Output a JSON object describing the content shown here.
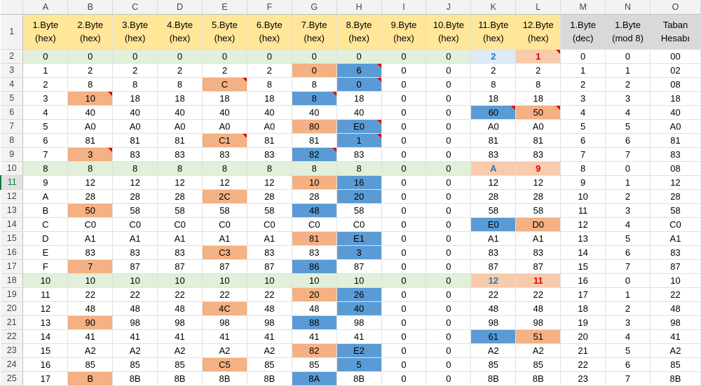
{
  "columns": [
    "A",
    "B",
    "C",
    "D",
    "E",
    "F",
    "G",
    "H",
    "I",
    "J",
    "K",
    "L",
    "M",
    "N",
    "O"
  ],
  "header_row": {
    "row_number": "1",
    "labels": [
      "1.Byte\n(hex)",
      "2.Byte\n(hex)",
      "3.Byte\n(hex)",
      "4.Byte\n(hex)",
      "5.Byte\n(hex)",
      "6.Byte\n(hex)",
      "7.Byte\n(hex)",
      "8.Byte\n(hex)",
      "9.Byte\n(hex)",
      "10.Byte\n(hex)",
      "11.Byte\n(hex)",
      "12.Byte\n(hex)",
      "1.Byte\n(dec)",
      "1.Byte\n(mod 8)",
      "Taban\nHesabı"
    ]
  },
  "rows": [
    {
      "num": "2",
      "cells": [
        "0",
        "0",
        "0",
        "0",
        "0",
        "0",
        "0",
        "0",
        "0",
        "0",
        "2",
        "1",
        "0",
        "0",
        "00"
      ]
    },
    {
      "num": "3",
      "cells": [
        "1",
        "2",
        "2",
        "2",
        "2",
        "2",
        "0",
        "6",
        "0",
        "0",
        "2",
        "2",
        "1",
        "1",
        "02"
      ]
    },
    {
      "num": "4",
      "cells": [
        "2",
        "8",
        "8",
        "8",
        "C",
        "8",
        "8",
        "0",
        "0",
        "0",
        "8",
        "8",
        "2",
        "2",
        "08"
      ]
    },
    {
      "num": "5",
      "cells": [
        "3",
        "10",
        "18",
        "18",
        "18",
        "18",
        "8",
        "18",
        "0",
        "0",
        "18",
        "18",
        "3",
        "3",
        "18"
      ]
    },
    {
      "num": "6",
      "cells": [
        "4",
        "40",
        "40",
        "40",
        "40",
        "40",
        "40",
        "40",
        "0",
        "0",
        "60",
        "50",
        "4",
        "4",
        "40"
      ]
    },
    {
      "num": "7",
      "cells": [
        "5",
        "A0",
        "A0",
        "A0",
        "A0",
        "A0",
        "80",
        "E0",
        "0",
        "0",
        "A0",
        "A0",
        "5",
        "5",
        "A0"
      ]
    },
    {
      "num": "8",
      "cells": [
        "6",
        "81",
        "81",
        "81",
        "C1",
        "81",
        "81",
        "1",
        "0",
        "0",
        "81",
        "81",
        "6",
        "6",
        "81"
      ]
    },
    {
      "num": "9",
      "cells": [
        "7",
        "3",
        "83",
        "83",
        "83",
        "83",
        "82",
        "83",
        "0",
        "0",
        "83",
        "83",
        "7",
        "7",
        "83"
      ]
    },
    {
      "num": "10",
      "cells": [
        "8",
        "8",
        "8",
        "8",
        "8",
        "8",
        "8",
        "8",
        "0",
        "0",
        "A",
        "9",
        "8",
        "0",
        "08"
      ]
    },
    {
      "num": "11",
      "cells": [
        "9",
        "12",
        "12",
        "12",
        "12",
        "12",
        "10",
        "16",
        "0",
        "0",
        "12",
        "12",
        "9",
        "1",
        "12"
      ]
    },
    {
      "num": "12",
      "cells": [
        "A",
        "28",
        "28",
        "28",
        "2C",
        "28",
        "28",
        "20",
        "0",
        "0",
        "28",
        "28",
        "10",
        "2",
        "28"
      ]
    },
    {
      "num": "13",
      "cells": [
        "B",
        "50",
        "58",
        "58",
        "58",
        "58",
        "48",
        "58",
        "0",
        "0",
        "58",
        "58",
        "11",
        "3",
        "58"
      ]
    },
    {
      "num": "14",
      "cells": [
        "C",
        "C0",
        "C0",
        "C0",
        "C0",
        "C0",
        "C0",
        "C0",
        "0",
        "0",
        "E0",
        "D0",
        "12",
        "4",
        "C0"
      ]
    },
    {
      "num": "15",
      "cells": [
        "D",
        "A1",
        "A1",
        "A1",
        "A1",
        "A1",
        "81",
        "E1",
        "0",
        "0",
        "A1",
        "A1",
        "13",
        "5",
        "A1"
      ]
    },
    {
      "num": "16",
      "cells": [
        "E",
        "83",
        "83",
        "83",
        "C3",
        "83",
        "83",
        "3",
        "0",
        "0",
        "83",
        "83",
        "14",
        "6",
        "83"
      ]
    },
    {
      "num": "17",
      "cells": [
        "F",
        "7",
        "87",
        "87",
        "87",
        "87",
        "86",
        "87",
        "0",
        "0",
        "87",
        "87",
        "15",
        "7",
        "87"
      ]
    },
    {
      "num": "18",
      "cells": [
        "10",
        "10",
        "10",
        "10",
        "10",
        "10",
        "10",
        "10",
        "0",
        "0",
        "12",
        "11",
        "16",
        "0",
        "10"
      ]
    },
    {
      "num": "19",
      "cells": [
        "11",
        "22",
        "22",
        "22",
        "22",
        "22",
        "20",
        "26",
        "0",
        "0",
        "22",
        "22",
        "17",
        "1",
        "22"
      ]
    },
    {
      "num": "20",
      "cells": [
        "12",
        "48",
        "48",
        "48",
        "4C",
        "48",
        "48",
        "40",
        "0",
        "0",
        "48",
        "48",
        "18",
        "2",
        "48"
      ]
    },
    {
      "num": "21",
      "cells": [
        "13",
        "90",
        "98",
        "98",
        "98",
        "98",
        "88",
        "98",
        "0",
        "0",
        "98",
        "98",
        "19",
        "3",
        "98"
      ]
    },
    {
      "num": "22",
      "cells": [
        "14",
        "41",
        "41",
        "41",
        "41",
        "41",
        "41",
        "41",
        "0",
        "0",
        "61",
        "51",
        "20",
        "4",
        "41"
      ]
    },
    {
      "num": "23",
      "cells": [
        "15",
        "A2",
        "A2",
        "A2",
        "A2",
        "A2",
        "82",
        "E2",
        "0",
        "0",
        "A2",
        "A2",
        "21",
        "5",
        "A2"
      ]
    },
    {
      "num": "24",
      "cells": [
        "16",
        "85",
        "85",
        "85",
        "C5",
        "85",
        "85",
        "5",
        "0",
        "0",
        "85",
        "85",
        "22",
        "6",
        "85"
      ]
    },
    {
      "num": "25",
      "cells": [
        "17",
        "B",
        "8B",
        "8B",
        "8B",
        "8B",
        "8A",
        "8B",
        "0",
        "0",
        "8B",
        "8B",
        "23",
        "7",
        "8B"
      ]
    }
  ],
  "colors": {
    "header_yellow": "#ffe699",
    "header_gray": "#d9d9d9",
    "highlight_row_green": "#e2efda",
    "highlight_peach": "#f8cbad",
    "changed_orange": "#f4b183",
    "changed_blue": "#5b9bd5",
    "comment_marker": "#e00000",
    "text_blue": "#2e75b6",
    "text_red": "#e00000"
  }
}
